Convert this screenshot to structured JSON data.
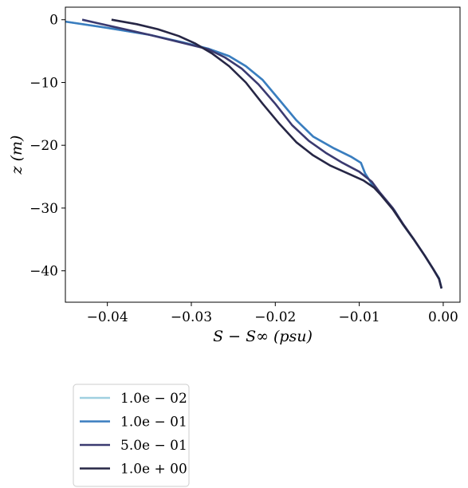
{
  "chart_data": {
    "type": "line",
    "xlabel": "S − S∞ (psu)",
    "ylabel": "z (m)",
    "xlim": [
      -0.045,
      0.002
    ],
    "ylim": [
      -45,
      2
    ],
    "xticks": [
      -0.04,
      -0.03,
      -0.02,
      -0.01,
      0.0
    ],
    "xtick_labels": [
      "−0.04",
      "−0.03",
      "−0.02",
      "−0.01",
      "0.00"
    ],
    "yticks": [
      0,
      -10,
      -20,
      -30,
      -40
    ],
    "ytick_labels": [
      "0",
      "−10",
      "−20",
      "−30",
      "−40"
    ],
    "grid": false,
    "legend_position": "below-left",
    "series": [
      {
        "name": "1.0e − 02",
        "color": "#9fd0e0",
        "x": [
          -0.045,
          -0.04,
          -0.035,
          -0.031,
          -0.028,
          -0.0255,
          -0.0235,
          -0.0215,
          -0.0195,
          -0.0175,
          -0.0155,
          -0.013,
          -0.011,
          -0.0098,
          -0.0093,
          -0.0083,
          -0.0072,
          -0.0058,
          -0.0048,
          -0.0035,
          -0.0022,
          -0.0012,
          -0.0005,
          -0.0002
        ],
        "y": [
          -0.3,
          -1.3,
          -2.4,
          -3.6,
          -4.6,
          -5.8,
          -7.4,
          -9.6,
          -12.8,
          -16.0,
          -18.6,
          -20.5,
          -21.8,
          -22.8,
          -24.5,
          -26.6,
          -28.2,
          -30.4,
          -32.6,
          -35.0,
          -37.6,
          -39.7,
          -41.2,
          -42.8
        ]
      },
      {
        "name": "1.0e − 01",
        "color": "#3a7dbf",
        "x": [
          -0.045,
          -0.04,
          -0.035,
          -0.031,
          -0.028,
          -0.0255,
          -0.0235,
          -0.0215,
          -0.0195,
          -0.0175,
          -0.0155,
          -0.013,
          -0.011,
          -0.0098,
          -0.0093,
          -0.0083,
          -0.0072,
          -0.0058,
          -0.0048,
          -0.0035,
          -0.0022,
          -0.0012,
          -0.0005,
          -0.0002
        ],
        "y": [
          -0.3,
          -1.3,
          -2.4,
          -3.6,
          -4.6,
          -5.8,
          -7.4,
          -9.6,
          -12.8,
          -16.0,
          -18.6,
          -20.5,
          -21.8,
          -22.8,
          -24.5,
          -26.6,
          -28.2,
          -30.4,
          -32.6,
          -35.0,
          -37.6,
          -39.7,
          -41.2,
          -42.8
        ]
      },
      {
        "name": "5.0e − 01",
        "color": "#3a3a70",
        "x": [
          -0.043,
          -0.039,
          -0.035,
          -0.031,
          -0.028,
          -0.026,
          -0.024,
          -0.022,
          -0.02,
          -0.018,
          -0.016,
          -0.014,
          -0.012,
          -0.01,
          -0.0085,
          -0.0075,
          -0.006,
          -0.0048,
          -0.0035,
          -0.0022,
          -0.0012,
          -0.0005,
          -0.0002
        ],
        "y": [
          0.0,
          -1.2,
          -2.4,
          -3.7,
          -4.7,
          -6.0,
          -7.8,
          -10.3,
          -13.4,
          -16.8,
          -19.3,
          -21.2,
          -22.8,
          -24.2,
          -25.8,
          -27.6,
          -30.0,
          -32.5,
          -35.0,
          -37.6,
          -39.7,
          -41.3,
          -42.8
        ]
      },
      {
        "name": "1.0e + 00",
        "color": "#262645",
        "x": [
          -0.0395,
          -0.0365,
          -0.034,
          -0.0315,
          -0.0295,
          -0.0275,
          -0.0255,
          -0.0235,
          -0.0215,
          -0.0195,
          -0.0175,
          -0.0155,
          -0.0135,
          -0.0115,
          -0.0095,
          -0.0082,
          -0.0075,
          -0.006,
          -0.0048,
          -0.0035,
          -0.0022,
          -0.0012,
          -0.0005,
          -0.0002
        ],
        "y": [
          0.0,
          -0.7,
          -1.5,
          -2.6,
          -3.8,
          -5.4,
          -7.4,
          -10.0,
          -13.4,
          -16.6,
          -19.5,
          -21.6,
          -23.2,
          -24.4,
          -25.6,
          -26.8,
          -27.8,
          -30.2,
          -32.6,
          -35.0,
          -37.6,
          -39.7,
          -41.3,
          -42.8
        ]
      }
    ]
  }
}
